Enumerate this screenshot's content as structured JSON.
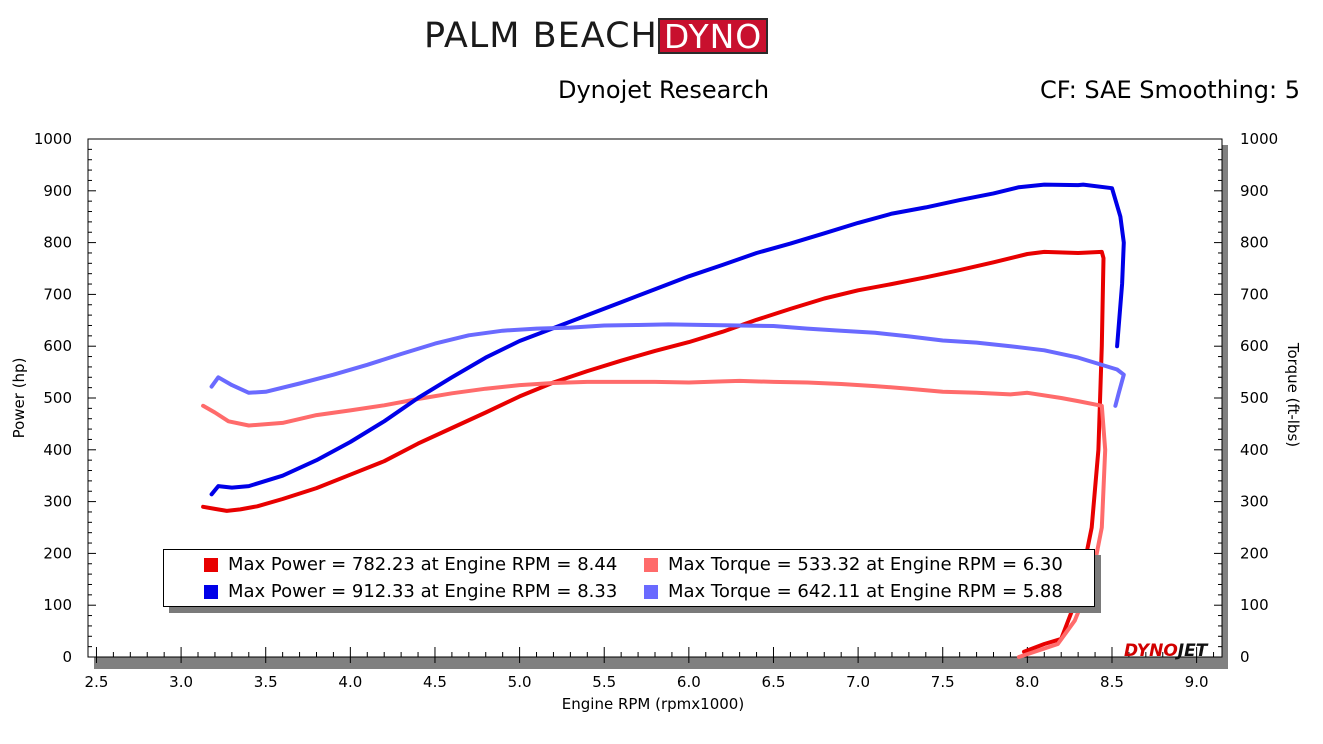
{
  "header": {
    "logo_text_a": "PALM BEACH",
    "logo_text_b": "DYNO",
    "subtitle": "Dynojet Research",
    "cf_text": "CF: SAE Smoothing: 5",
    "watermark_a": "DYNO",
    "watermark_b": "JET"
  },
  "colors": {
    "power_run1": "#e80000",
    "torque_run1": "#ff6b6b",
    "power_run2": "#0000e8",
    "torque_run2": "#6a6aff"
  },
  "legend": {
    "items": [
      {
        "text": "Max Power = 782.23 at Engine RPM = 8.44",
        "color": "#e80000"
      },
      {
        "text": "Max Torque = 533.32 at Engine RPM = 6.30",
        "color": "#ff6b6b"
      },
      {
        "text": "Max Power = 912.33 at Engine RPM = 8.33",
        "color": "#0000e8"
      },
      {
        "text": "Max Torque = 642.11 at Engine RPM = 5.88",
        "color": "#6a6aff"
      }
    ]
  },
  "chart_data": {
    "type": "line",
    "xlabel": "Engine RPM (rpmx1000)",
    "ylabel": "Power (hp)",
    "y2label": "Torque (ft-lbs)",
    "xlim": [
      2.45,
      9.15
    ],
    "ylim": [
      0,
      1000
    ],
    "y2lim": [
      0,
      1000
    ],
    "xticks": [
      "2.5",
      "3.0",
      "3.5",
      "4.0",
      "4.5",
      "5.0",
      "5.5",
      "6.0",
      "6.5",
      "7.0",
      "7.5",
      "8.0",
      "8.5",
      "9.0"
    ],
    "yticks": [
      "0",
      "100",
      "200",
      "300",
      "400",
      "500",
      "600",
      "700",
      "800",
      "900",
      "1000"
    ],
    "grid": false,
    "series": [
      {
        "key": "power_run1",
        "points": [
          [
            3.13,
            290
          ],
          [
            3.2,
            286
          ],
          [
            3.27,
            282
          ],
          [
            3.35,
            285
          ],
          [
            3.45,
            291
          ],
          [
            3.6,
            305
          ],
          [
            3.8,
            326
          ],
          [
            4.0,
            352
          ],
          [
            4.2,
            378
          ],
          [
            4.4,
            412
          ],
          [
            4.6,
            442
          ],
          [
            4.8,
            472
          ],
          [
            5.0,
            503
          ],
          [
            5.2,
            530
          ],
          [
            5.4,
            552
          ],
          [
            5.6,
            572
          ],
          [
            5.8,
            591
          ],
          [
            6.0,
            608
          ],
          [
            6.2,
            628
          ],
          [
            6.4,
            651
          ],
          [
            6.6,
            672
          ],
          [
            6.8,
            692
          ],
          [
            7.0,
            708
          ],
          [
            7.2,
            720
          ],
          [
            7.4,
            733
          ],
          [
            7.6,
            747
          ],
          [
            7.8,
            762
          ],
          [
            8.0,
            778
          ],
          [
            8.1,
            782
          ],
          [
            8.3,
            780
          ],
          [
            8.44,
            782
          ],
          [
            8.45,
            770
          ],
          [
            8.44,
            600
          ],
          [
            8.42,
            400
          ],
          [
            8.38,
            250
          ],
          [
            8.3,
            120
          ],
          [
            8.2,
            35
          ],
          [
            8.1,
            25
          ],
          [
            7.98,
            10
          ]
        ]
      },
      {
        "key": "torque_run1",
        "points": [
          [
            3.13,
            485
          ],
          [
            3.2,
            472
          ],
          [
            3.28,
            455
          ],
          [
            3.4,
            447
          ],
          [
            3.6,
            452
          ],
          [
            3.8,
            467
          ],
          [
            4.0,
            476
          ],
          [
            4.2,
            486
          ],
          [
            4.4,
            498
          ],
          [
            4.6,
            509
          ],
          [
            4.8,
            518
          ],
          [
            5.0,
            525
          ],
          [
            5.2,
            529
          ],
          [
            5.4,
            531
          ],
          [
            5.6,
            531
          ],
          [
            5.8,
            531
          ],
          [
            6.0,
            530
          ],
          [
            6.2,
            532
          ],
          [
            6.3,
            533
          ],
          [
            6.5,
            531
          ],
          [
            6.7,
            530
          ],
          [
            6.9,
            527
          ],
          [
            7.1,
            523
          ],
          [
            7.3,
            518
          ],
          [
            7.5,
            512
          ],
          [
            7.7,
            510
          ],
          [
            7.9,
            507
          ],
          [
            8.0,
            510
          ],
          [
            8.2,
            500
          ],
          [
            8.3,
            494
          ],
          [
            8.44,
            485
          ],
          [
            8.46,
            400
          ],
          [
            8.44,
            250
          ],
          [
            8.38,
            150
          ],
          [
            8.28,
            70
          ],
          [
            8.18,
            25
          ],
          [
            7.95,
            0
          ]
        ]
      },
      {
        "key": "power_run2",
        "points": [
          [
            3.18,
            314
          ],
          [
            3.22,
            330
          ],
          [
            3.3,
            327
          ],
          [
            3.4,
            330
          ],
          [
            3.6,
            350
          ],
          [
            3.8,
            380
          ],
          [
            4.0,
            415
          ],
          [
            4.2,
            455
          ],
          [
            4.4,
            500
          ],
          [
            4.6,
            540
          ],
          [
            4.8,
            578
          ],
          [
            5.0,
            610
          ],
          [
            5.2,
            635
          ],
          [
            5.4,
            660
          ],
          [
            5.6,
            685
          ],
          [
            5.8,
            710
          ],
          [
            6.0,
            735
          ],
          [
            6.2,
            757
          ],
          [
            6.4,
            780
          ],
          [
            6.6,
            798
          ],
          [
            6.8,
            818
          ],
          [
            7.0,
            838
          ],
          [
            7.2,
            856
          ],
          [
            7.4,
            868
          ],
          [
            7.6,
            882
          ],
          [
            7.8,
            895
          ],
          [
            7.95,
            907
          ],
          [
            8.1,
            912
          ],
          [
            8.3,
            911
          ],
          [
            8.33,
            912
          ],
          [
            8.5,
            905
          ],
          [
            8.55,
            850
          ],
          [
            8.57,
            800
          ],
          [
            8.56,
            720
          ],
          [
            8.53,
            600
          ]
        ]
      },
      {
        "key": "torque_run2",
        "points": [
          [
            3.18,
            522
          ],
          [
            3.22,
            540
          ],
          [
            3.3,
            525
          ],
          [
            3.4,
            510
          ],
          [
            3.5,
            512
          ],
          [
            3.7,
            528
          ],
          [
            3.9,
            545
          ],
          [
            4.1,
            564
          ],
          [
            4.3,
            585
          ],
          [
            4.5,
            605
          ],
          [
            4.7,
            621
          ],
          [
            4.9,
            630
          ],
          [
            5.1,
            634
          ],
          [
            5.3,
            636
          ],
          [
            5.5,
            640
          ],
          [
            5.7,
            641
          ],
          [
            5.88,
            642
          ],
          [
            6.1,
            641
          ],
          [
            6.3,
            640
          ],
          [
            6.5,
            639
          ],
          [
            6.7,
            634
          ],
          [
            6.9,
            630
          ],
          [
            7.1,
            626
          ],
          [
            7.3,
            619
          ],
          [
            7.5,
            611
          ],
          [
            7.7,
            607
          ],
          [
            7.9,
            600
          ],
          [
            8.1,
            592
          ],
          [
            8.3,
            578
          ],
          [
            8.45,
            563
          ],
          [
            8.53,
            555
          ],
          [
            8.57,
            545
          ],
          [
            8.54,
            510
          ],
          [
            8.52,
            485
          ]
        ]
      }
    ]
  }
}
